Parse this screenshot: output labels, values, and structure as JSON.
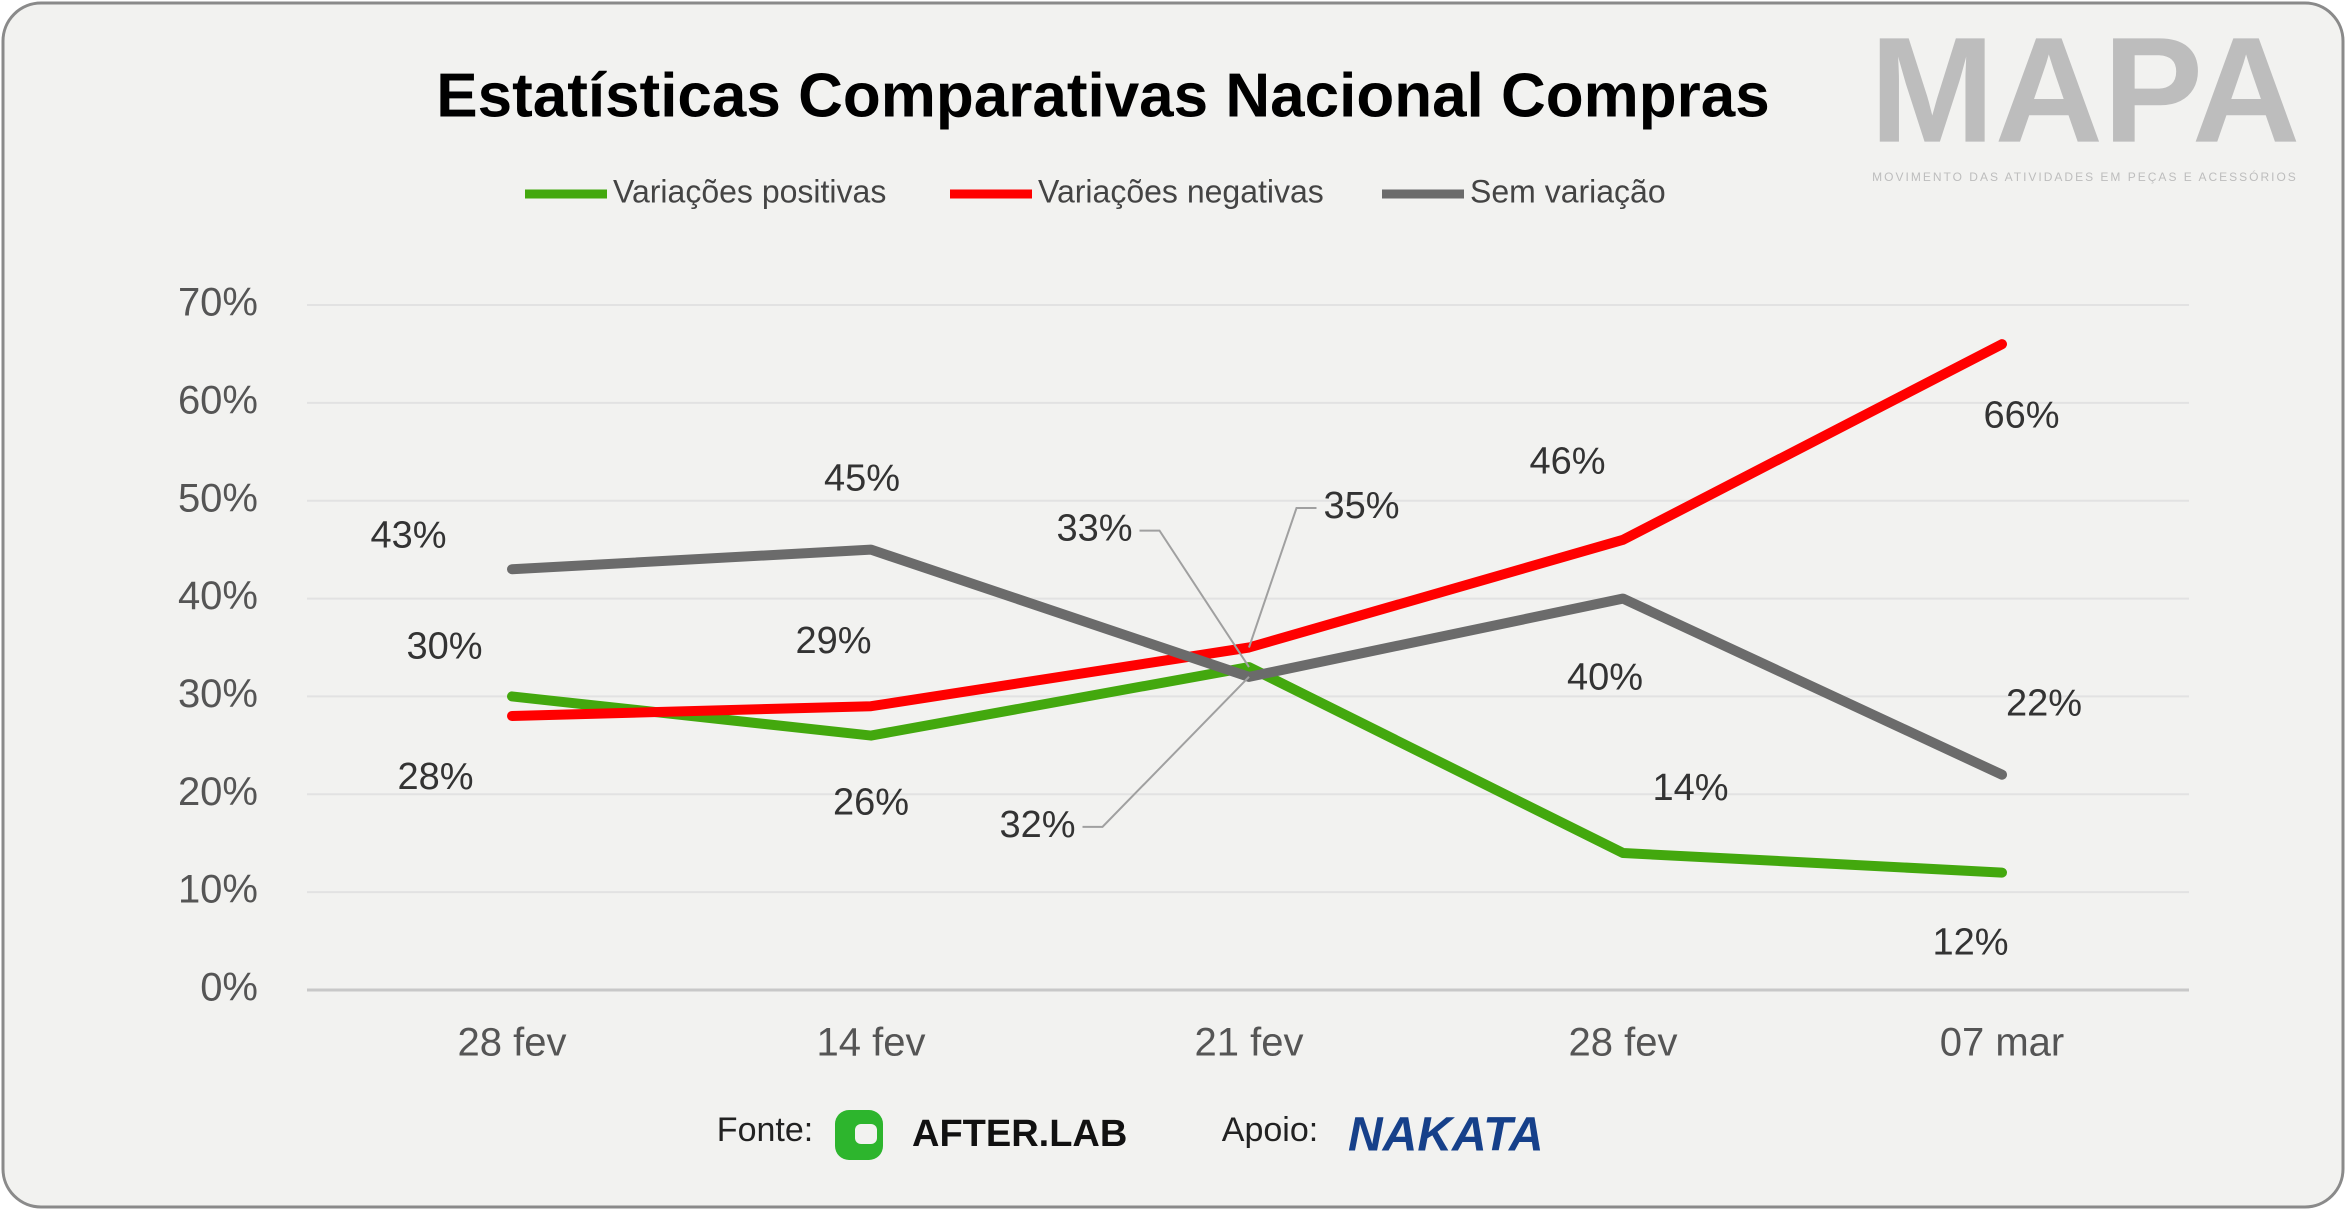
{
  "chart_data": {
    "type": "line",
    "title": "Estatísticas Comparativas Nacional Compras",
    "categories": [
      "28 fev",
      "14 fev",
      "21 fev",
      "28 fev",
      "07 mar"
    ],
    "series": [
      {
        "name": "Variações positivas",
        "color": "#43a80e",
        "values": [
          30,
          26,
          33,
          14,
          12
        ],
        "value_labels": [
          "30%",
          "26%",
          "33%",
          "14%",
          "12%"
        ]
      },
      {
        "name": "Variações negativas",
        "color": "#ff0000",
        "values": [
          28,
          29,
          35,
          46,
          66
        ],
        "value_labels": [
          "28%",
          "29%",
          "35%",
          "46%",
          "66%"
        ]
      },
      {
        "name": "Sem variação",
        "color": "#6b6b6b",
        "values": [
          43,
          45,
          32,
          40,
          22
        ],
        "value_labels": [
          "43%",
          "45%",
          "32%",
          "40%",
          "22%"
        ]
      }
    ],
    "ylim": [
      0,
      70
    ],
    "yticks": [
      {
        "value": 0,
        "label": "0%"
      },
      {
        "value": 10,
        "label": "10%"
      },
      {
        "value": 20,
        "label": "20%"
      },
      {
        "value": 30,
        "label": "30%"
      },
      {
        "value": 40,
        "label": "40%"
      },
      {
        "value": 50,
        "label": "50%"
      },
      {
        "value": 60,
        "label": "60%"
      },
      {
        "value": 70,
        "label": "70%"
      }
    ],
    "grid": true,
    "legend": "top"
  },
  "logo": {
    "name": "MAPA",
    "tagline": "MOVIMENTO DAS ATIVIDADES EM PEÇAS E ACESSÓRIOS"
  },
  "footer": {
    "source_label": "Fonte:",
    "source": "AFTER.LAB",
    "support_label": "Apoio:",
    "support": "NAKATA"
  }
}
